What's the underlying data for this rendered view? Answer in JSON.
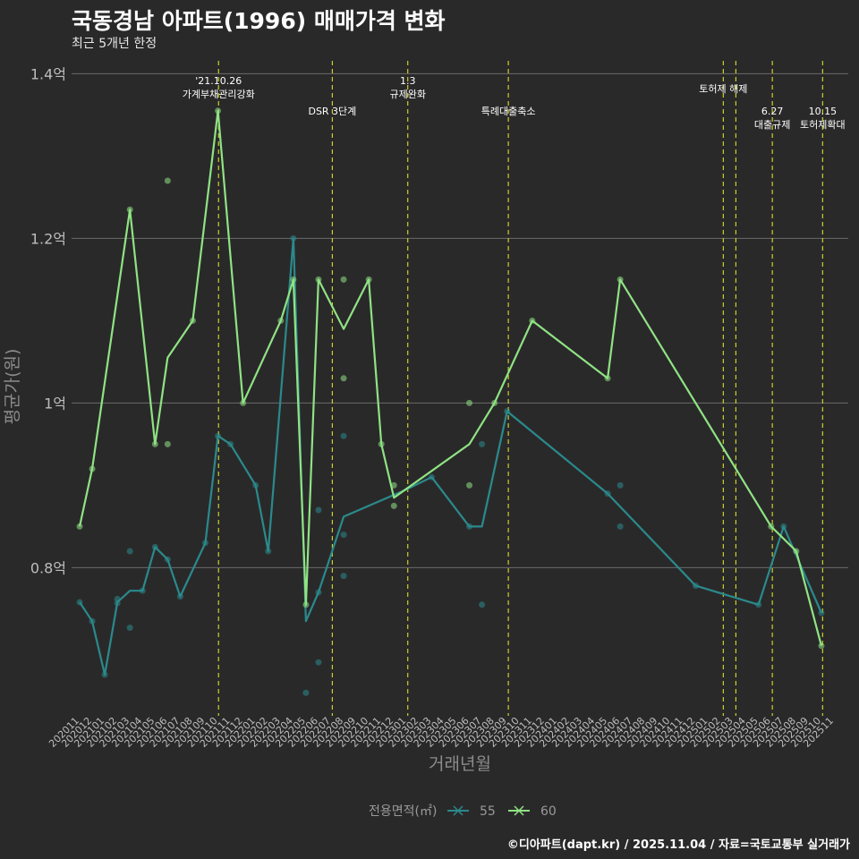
{
  "header": {
    "title": "국동경남 아파트(1996) 매매가격 변화",
    "subtitle": "최근 5개년 한정"
  },
  "footer": {
    "caption": "©디아파트(dapt.kr) / 2025.11.04 / 자료=국토교통부 실거래가"
  },
  "colors": {
    "background": "#2a292a",
    "series_55": "#2a8a8c",
    "series_60": "#8fe383",
    "policy_line": "#c8d12a",
    "grid": "#6b6b6b"
  },
  "chart_data": {
    "type": "line",
    "title": "국동경남 아파트(1996) 매매가격 변화",
    "subtitle": "최근 5개년 한정",
    "xlabel": "거래년월",
    "ylabel": "평균가(원)",
    "ylim": [
      0.62,
      1.42
    ],
    "yticks": [
      {
        "value": 0.8,
        "label": "0.8억"
      },
      {
        "value": 1.0,
        "label": "1억"
      },
      {
        "value": 1.2,
        "label": "1.2억"
      },
      {
        "value": 1.4,
        "label": "1.4억"
      }
    ],
    "categories": [
      "202011",
      "202012",
      "202101",
      "202102",
      "202103",
      "202104",
      "202105",
      "202106",
      "202107",
      "202108",
      "202109",
      "202110",
      "202111",
      "202112",
      "202201",
      "202202",
      "202203",
      "202204",
      "202205",
      "202206",
      "202207",
      "202208",
      "202209",
      "202210",
      "202211",
      "202212",
      "202301",
      "202302",
      "202303",
      "202304",
      "202305",
      "202306",
      "202307",
      "202308",
      "202309",
      "202310",
      "202311",
      "202312",
      "202401",
      "202402",
      "202403",
      "202404",
      "202405",
      "202406",
      "202407",
      "202408",
      "202409",
      "202410",
      "202411",
      "202412",
      "202501",
      "202502",
      "202503",
      "202504",
      "202505",
      "202506",
      "202507",
      "202508",
      "202509",
      "202510",
      "202511"
    ],
    "series": [
      {
        "name": "55",
        "line": [
          [
            "202011",
            0.758
          ],
          [
            "202012",
            0.735
          ],
          [
            "202101",
            0.67
          ],
          [
            "202102",
            0.758
          ],
          [
            "202103",
            0.772
          ],
          [
            "202104",
            0.772
          ],
          [
            "202105",
            0.825
          ],
          [
            "202106",
            0.81
          ],
          [
            "202107",
            0.765
          ],
          [
            "202109",
            0.83
          ],
          [
            "202110",
            0.96
          ],
          [
            "202111",
            0.95
          ],
          [
            "202201",
            0.9
          ],
          [
            "202202",
            0.82
          ],
          [
            "202204",
            1.2
          ],
          [
            "202205",
            0.735
          ],
          [
            "202206",
            0.77
          ],
          [
            "202208",
            0.862
          ],
          [
            "202301",
            0.895
          ],
          [
            "202303",
            0.91
          ],
          [
            "202306",
            0.85
          ],
          [
            "202307",
            0.85
          ],
          [
            "202309",
            0.99
          ],
          [
            "202405",
            0.89
          ],
          [
            "202412",
            0.778
          ],
          [
            "202505",
            0.755
          ],
          [
            "202507",
            0.85
          ],
          [
            "202510",
            0.745
          ]
        ],
        "points": [
          [
            "202011",
            0.758
          ],
          [
            "202012",
            0.735
          ],
          [
            "202101",
            0.67
          ],
          [
            "202102",
            0.762
          ],
          [
            "202102",
            0.757
          ],
          [
            "202103",
            0.82
          ],
          [
            "202103",
            0.727
          ],
          [
            "202104",
            0.772
          ],
          [
            "202105",
            0.825
          ],
          [
            "202106",
            0.81
          ],
          [
            "202107",
            0.765
          ],
          [
            "202109",
            0.83
          ],
          [
            "202110",
            0.96
          ],
          [
            "202111",
            0.95
          ],
          [
            "202201",
            0.9
          ],
          [
            "202202",
            0.82
          ],
          [
            "202204",
            1.2
          ],
          [
            "202205",
            0.648
          ],
          [
            "202206",
            0.87
          ],
          [
            "202206",
            0.77
          ],
          [
            "202206",
            0.685
          ],
          [
            "202208",
            0.96
          ],
          [
            "202208",
            0.84
          ],
          [
            "202208",
            0.79
          ],
          [
            "202303",
            0.91
          ],
          [
            "202306",
            0.85
          ],
          [
            "202307",
            0.95
          ],
          [
            "202307",
            0.755
          ],
          [
            "202309",
            0.99
          ],
          [
            "202405",
            0.89
          ],
          [
            "202406",
            0.9
          ],
          [
            "202406",
            0.85
          ],
          [
            "202412",
            0.778
          ],
          [
            "202505",
            0.755
          ],
          [
            "202507",
            0.85
          ],
          [
            "202510",
            0.745
          ]
        ]
      },
      {
        "name": "60",
        "line": [
          [
            "202011",
            0.85
          ],
          [
            "202012",
            0.92
          ],
          [
            "202103",
            1.235
          ],
          [
            "202105",
            0.95
          ],
          [
            "202106",
            1.055
          ],
          [
            "202108",
            1.1
          ],
          [
            "202110",
            1.355
          ],
          [
            "202112",
            1.0
          ],
          [
            "202203",
            1.1
          ],
          [
            "202204",
            1.15
          ],
          [
            "202205",
            0.755
          ],
          [
            "202206",
            1.15
          ],
          [
            "202208",
            1.09
          ],
          [
            "202210",
            1.15
          ],
          [
            "202211",
            0.95
          ],
          [
            "202212",
            0.885
          ],
          [
            "202306",
            0.95
          ],
          [
            "202308",
            1.0
          ],
          [
            "202311",
            1.1
          ],
          [
            "202405",
            1.03
          ],
          [
            "202406",
            1.15
          ],
          [
            "202506",
            0.85
          ],
          [
            "202508",
            0.82
          ],
          [
            "202510",
            0.705
          ]
        ],
        "points": [
          [
            "202011",
            0.85
          ],
          [
            "202012",
            0.92
          ],
          [
            "202103",
            1.235
          ],
          [
            "202105",
            0.95
          ],
          [
            "202106",
            1.27
          ],
          [
            "202106",
            0.95
          ],
          [
            "202108",
            1.1
          ],
          [
            "202110",
            1.355
          ],
          [
            "202112",
            1.0
          ],
          [
            "202203",
            1.1
          ],
          [
            "202204",
            1.15
          ],
          [
            "202205",
            0.755
          ],
          [
            "202206",
            1.15
          ],
          [
            "202208",
            1.15
          ],
          [
            "202208",
            1.03
          ],
          [
            "202210",
            1.15
          ],
          [
            "202211",
            0.95
          ],
          [
            "202212",
            0.9
          ],
          [
            "202212",
            0.875
          ],
          [
            "202306",
            1.0
          ],
          [
            "202306",
            0.9
          ],
          [
            "202308",
            1.0
          ],
          [
            "202311",
            1.1
          ],
          [
            "202405",
            1.03
          ],
          [
            "202406",
            1.15
          ],
          [
            "202506",
            0.85
          ],
          [
            "202508",
            0.82
          ],
          [
            "202510",
            0.705
          ]
        ]
      }
    ],
    "policy_lines": [
      {
        "x": 11.05,
        "labels": [
          "'21.10.26",
          "가계부채관리강화"
        ],
        "level": 1
      },
      {
        "x": 20.1,
        "labels": [
          "DSR 3단계"
        ],
        "level": 3
      },
      {
        "x": 26.1,
        "labels": [
          "1.3",
          "규제완화"
        ],
        "level": 1
      },
      {
        "x": 34.1,
        "labels": [
          "특례대출축소"
        ],
        "level": 3
      },
      {
        "x": 51.2,
        "labels": [
          "토허제 해제"
        ],
        "level": 2
      },
      {
        "x": 52.2,
        "labels": [],
        "level": 0
      },
      {
        "x": 55.1,
        "labels": [
          "6.27",
          "대출규제"
        ],
        "level": 3
      },
      {
        "x": 59.1,
        "labels": [
          "10.15",
          "토허제확대"
        ],
        "level": 3
      }
    ],
    "legend": {
      "title": "전용면적(㎡)",
      "items": [
        "55",
        "60"
      ],
      "position": "bottom"
    },
    "grid": true
  }
}
